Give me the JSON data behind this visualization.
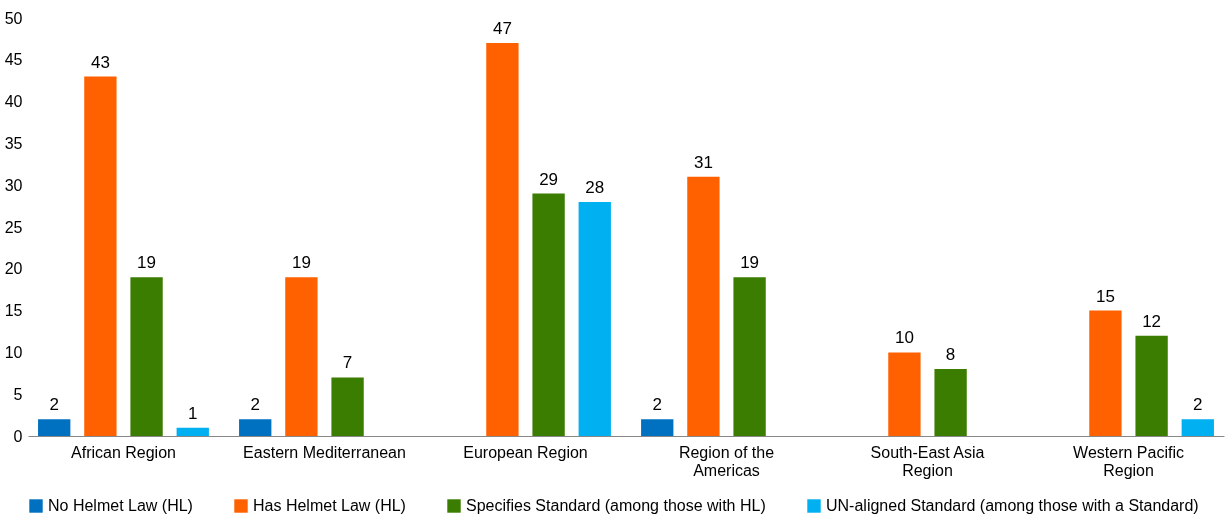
{
  "chart_data": {
    "type": "bar",
    "categories": [
      "African Region",
      "Eastern Mediterranean",
      "European Region",
      "Region of the Americas",
      "South-East Asia Region",
      "Western Pacific Region"
    ],
    "series": [
      {
        "name": "No Helmet Law (HL)",
        "color": "#0070c0",
        "values": [
          2,
          2,
          null,
          2,
          null,
          null
        ]
      },
      {
        "name": "Has Helmet Law (HL)",
        "color": "#ff6000",
        "values": [
          43,
          19,
          47,
          31,
          10,
          15
        ]
      },
      {
        "name": "Specifies Standard (among those with HL)",
        "color": "#3a7d00",
        "values": [
          19,
          7,
          29,
          19,
          8,
          12
        ]
      },
      {
        "name": "UN-aligned Standard (among those with a Standard)",
        "color": "#00b0f0",
        "values": [
          1,
          null,
          28,
          null,
          null,
          2
        ]
      }
    ],
    "ylim": [
      0,
      50
    ],
    "yticks": [
      0,
      5,
      10,
      15,
      20,
      25,
      30,
      35,
      40,
      45,
      50
    ],
    "grid": false,
    "legend": "bottom",
    "data_labels": true
  }
}
